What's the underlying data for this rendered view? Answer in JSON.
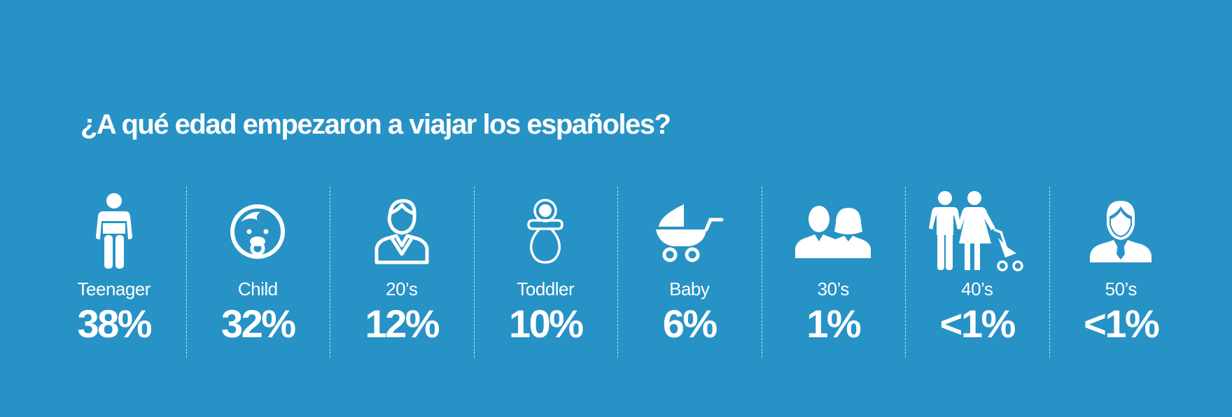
{
  "title": "¿A qué edad empezaron a viajar los españoles?",
  "colors": {
    "background": "#2792c5",
    "foreground": "#ffffff"
  },
  "stats": [
    {
      "label": "Teenager",
      "value": "38%",
      "icon": "teenager-icon"
    },
    {
      "label": "Child",
      "value": "32%",
      "icon": "child-face-icon"
    },
    {
      "label": "20’s",
      "value": "12%",
      "icon": "young-man-icon"
    },
    {
      "label": "Toddler",
      "value": "10%",
      "icon": "pacifier-icon"
    },
    {
      "label": "Baby",
      "value": "6%",
      "icon": "pram-icon"
    },
    {
      "label": "30’s",
      "value": "1%",
      "icon": "couple-icon"
    },
    {
      "label": "40’s",
      "value": "<1%",
      "icon": "family-stroller-icon"
    },
    {
      "label": "50’s",
      "value": "<1%",
      "icon": "businessman-icon"
    }
  ]
}
